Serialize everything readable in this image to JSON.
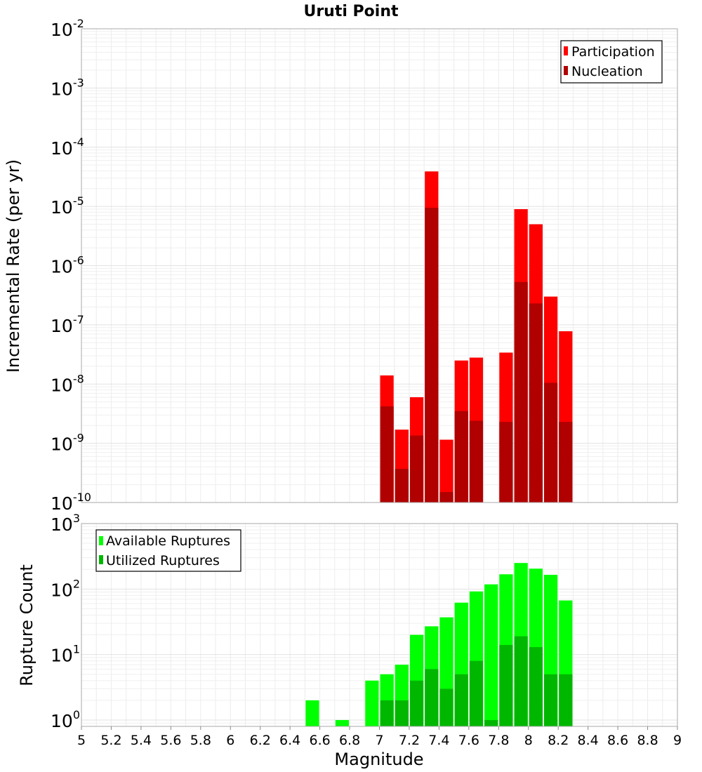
{
  "title": "Uruti Point",
  "xlabel": "Magnitude",
  "chart_data": [
    {
      "type": "bar",
      "name": "top",
      "title": "Uruti Point",
      "ylabel": "Incremental Rate (per yr)",
      "yscale": "log",
      "ylim": [
        1e-10,
        0.01
      ],
      "xlim": [
        5,
        9
      ],
      "legend": "top-right",
      "grid": true,
      "x": [
        7.0,
        7.1,
        7.2,
        7.3,
        7.4,
        7.5,
        7.6,
        7.8,
        7.9,
        8.0,
        8.1,
        8.2
      ],
      "series": [
        {
          "name": "Participation",
          "color": "#ff0000",
          "values": [
            1.4e-08,
            1.7e-09,
            6e-09,
            3.9e-05,
            1.15e-09,
            2.5e-08,
            2.8e-08,
            3.4e-08,
            9e-06,
            5e-06,
            3e-07,
            7.8e-08
          ]
        },
        {
          "name": "Nucleation",
          "color": "#b00000",
          "values": [
            4.2e-09,
            3.7e-10,
            1.35e-09,
            9.5e-06,
            1.5e-10,
            3.5e-09,
            2.4e-09,
            2.3e-09,
            5.3e-07,
            2.3e-07,
            1.05e-08,
            2.3e-09
          ]
        }
      ]
    },
    {
      "type": "bar",
      "name": "bottom",
      "ylabel": "Rupture Count",
      "yscale": "log",
      "ylim": [
        0.8,
        1000
      ],
      "xlim": [
        5,
        9
      ],
      "legend": "top-left",
      "grid": true,
      "x": [
        6.5,
        6.6,
        6.7,
        6.8,
        6.9,
        7.0,
        7.1,
        7.2,
        7.3,
        7.4,
        7.5,
        7.6,
        7.7,
        7.8,
        7.9,
        8.0,
        8.1,
        8.2
      ],
      "series": [
        {
          "name": "Available Ruptures",
          "color": "#00ff00",
          "values": [
            2,
            null,
            1,
            null,
            4,
            5,
            7,
            20,
            27,
            37,
            62,
            92,
            118,
            168,
            250,
            205,
            165,
            67
          ]
        },
        {
          "name": "Utilized Ruptures",
          "color": "#00b700",
          "values": [
            null,
            null,
            null,
            null,
            null,
            2,
            2,
            4,
            6,
            3,
            5,
            8,
            1,
            14,
            19,
            13,
            5,
            5
          ]
        }
      ]
    }
  ],
  "xticks": [
    "5",
    "5.2",
    "5.4",
    "5.6",
    "5.8",
    "6",
    "6.2",
    "6.4",
    "6.6",
    "6.8",
    "7",
    "7.2",
    "7.4",
    "7.6",
    "7.8",
    "8",
    "8.2",
    "8.4",
    "8.6",
    "8.8",
    "9"
  ],
  "top_yticks": [
    {
      "base": "10",
      "exp": "-2"
    },
    {
      "base": "10",
      "exp": "-3"
    },
    {
      "base": "10",
      "exp": "-4"
    },
    {
      "base": "10",
      "exp": "-5"
    },
    {
      "base": "10",
      "exp": "-6"
    },
    {
      "base": "10",
      "exp": "-7"
    },
    {
      "base": "10",
      "exp": "-8"
    },
    {
      "base": "10",
      "exp": "-9"
    },
    {
      "base": "10",
      "exp": "-10"
    }
  ],
  "bottom_yticks": [
    {
      "base": "10",
      "exp": "3"
    },
    {
      "base": "10",
      "exp": "2"
    },
    {
      "base": "10",
      "exp": "1"
    },
    {
      "base": "10",
      "exp": "0"
    }
  ]
}
